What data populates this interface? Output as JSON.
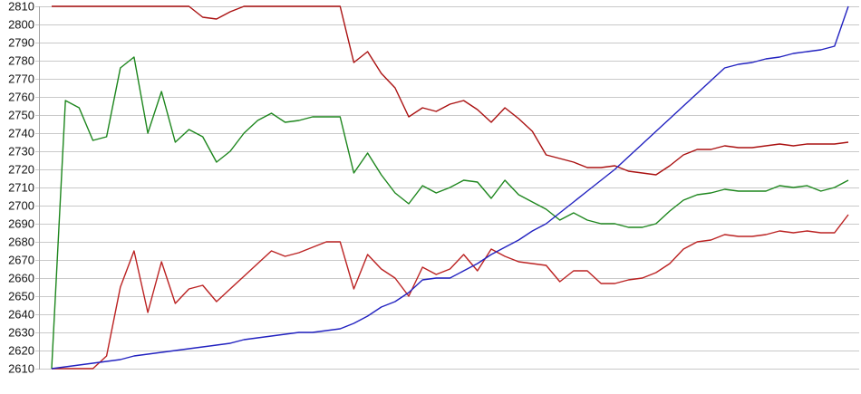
{
  "chart": {
    "background": "#ffffff",
    "grid_color": "#c9c9c9",
    "axis_color": "#a3a3a3",
    "label_color": "#151515"
  },
  "chart_data": {
    "type": "line",
    "title": "",
    "xlabel": "",
    "ylabel": "",
    "legend": "none",
    "grid": "horizontal",
    "ylim": [
      2610,
      2810
    ],
    "ytick_step": 10,
    "yticks": [
      2810,
      2800,
      2790,
      2780,
      2770,
      2760,
      2750,
      2740,
      2730,
      2720,
      2710,
      2700,
      2690,
      2680,
      2670,
      2660,
      2650,
      2640,
      2630,
      2620,
      2610
    ],
    "x_labels_visible": false,
    "points_per_series": 59,
    "series": [
      {
        "name": "dark-red-upper",
        "color": "#aa1111",
        "values": [
          2810,
          2810,
          2810,
          2810,
          2810,
          2810,
          2810,
          2810,
          2810,
          2810,
          2810,
          2804,
          2803,
          2807,
          2810,
          2810,
          2810,
          2810,
          2810,
          2810,
          2810,
          2810,
          2779,
          2785,
          2773,
          2765,
          2749,
          2754,
          2752,
          2756,
          2758,
          2753,
          2746,
          2754,
          2748,
          2741,
          2728,
          2726,
          2724,
          2721,
          2721,
          2722,
          2719,
          2718,
          2717,
          2722,
          2728,
          2731,
          2731,
          2733,
          2732,
          2732,
          2733,
          2734,
          2733,
          2734,
          2734,
          2734,
          2735
        ]
      },
      {
        "name": "green",
        "color": "#1d861d",
        "values": [
          2610,
          2758,
          2754,
          2736,
          2738,
          2776,
          2782,
          2740,
          2763,
          2735,
          2742,
          2738,
          2724,
          2730,
          2740,
          2747,
          2751,
          2746,
          2747,
          2749,
          2749,
          2749,
          2718,
          2729,
          2717,
          2707,
          2701,
          2711,
          2707,
          2710,
          2714,
          2713,
          2704,
          2714,
          2706,
          2702,
          2698,
          2692,
          2696,
          2692,
          2690,
          2690,
          2688,
          2688,
          2690,
          2697,
          2703,
          2706,
          2707,
          2709,
          2708,
          2708,
          2708,
          2711,
          2710,
          2711,
          2708,
          2710,
          2714
        ]
      },
      {
        "name": "dark-red-lower",
        "color": "#bb2222",
        "values": [
          2610,
          2610,
          2610,
          2610,
          2617,
          2655,
          2675,
          2641,
          2669,
          2646,
          2654,
          2656,
          2647,
          2654,
          2661,
          2668,
          2675,
          2672,
          2674,
          2677,
          2680,
          2680,
          2654,
          2673,
          2665,
          2660,
          2650,
          2666,
          2662,
          2665,
          2673,
          2664,
          2676,
          2672,
          2669,
          2668,
          2667,
          2658,
          2664,
          2664,
          2657,
          2657,
          2659,
          2660,
          2663,
          2668,
          2676,
          2680,
          2681,
          2684,
          2683,
          2683,
          2684,
          2686,
          2685,
          2686,
          2685,
          2685,
          2695
        ]
      },
      {
        "name": "blue",
        "color": "#2222c0",
        "values": [
          2610,
          2611,
          2612,
          2613,
          2614,
          2615,
          2617,
          2618,
          2619,
          2620,
          2621,
          2622,
          2623,
          2624,
          2626,
          2627,
          2628,
          2629,
          2630,
          2630,
          2631,
          2632,
          2635,
          2639,
          2644,
          2647,
          2652,
          2659,
          2660,
          2660,
          2664,
          2668,
          2673,
          2677,
          2681,
          2686,
          2690,
          2696,
          2702,
          2708,
          2714,
          2720,
          2727,
          2734,
          2741,
          2748,
          2755,
          2762,
          2769,
          2776,
          2778,
          2779,
          2781,
          2782,
          2784,
          2785,
          2786,
          2788,
          2810
        ]
      }
    ]
  }
}
